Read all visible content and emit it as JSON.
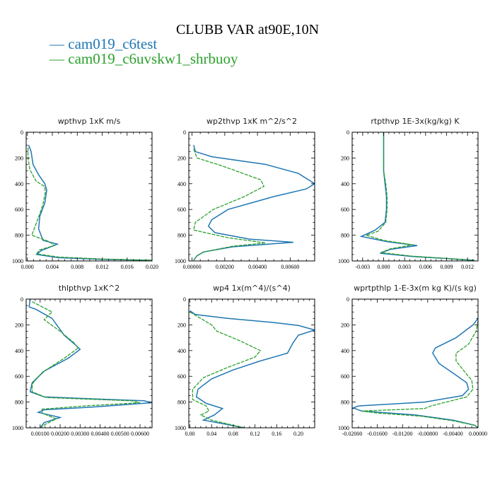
{
  "title": "CLUBB VAR at90E,10N",
  "colors": {
    "c6test": "#1f77b4",
    "shrbuoy": "#2ca02c"
  },
  "legend": [
    {
      "name": "cam019_c6test",
      "label": "— cam019_c6test",
      "color": "#1f77b4",
      "dash": ""
    },
    {
      "name": "cam019_c6uvskw1_shrbuoy",
      "label": "— cam019_c6uvskw1_shrbuoy",
      "color": "#2ca02c",
      "dash": "5,1.5"
    }
  ],
  "chart_data": [
    {
      "type": "line",
      "title": "wpthvp   1xK m/s",
      "ylim": [
        1000,
        0
      ],
      "yticks": [
        "0",
        "200",
        "400",
        "600",
        "800",
        "1000"
      ],
      "ytick_values": [
        0,
        200,
        400,
        600,
        800,
        1000
      ],
      "xlim": [
        -0.0002,
        0.02
      ],
      "xticks": [
        "0.000",
        "0.004",
        "0.008",
        "0.012",
        "0.016",
        "0.020"
      ],
      "xtick_values": [
        0,
        0.004,
        0.008,
        0.012,
        0.016,
        0.02
      ],
      "series": [
        {
          "name": "cam019_c6test",
          "points": [
            [
              0.0002,
              100
            ],
            [
              0.0006,
              150
            ],
            [
              0.0009,
              250
            ],
            [
              0.0018,
              330
            ],
            [
              0.0028,
              400
            ],
            [
              0.0031,
              450
            ],
            [
              0.0028,
              550
            ],
            [
              0.002,
              650
            ],
            [
              0.0018,
              750
            ],
            [
              0.0025,
              840
            ],
            [
              0.0048,
              870
            ],
            [
              0.0022,
              920
            ],
            [
              0.0015,
              950
            ],
            [
              0.005,
              975
            ],
            [
              0.012,
              988
            ],
            [
              0.02,
              995
            ]
          ]
        },
        {
          "name": "cam019_c6uvskw1_shrbuoy",
          "points": [
            [
              0.0001,
              120
            ],
            [
              0.0001,
              200
            ],
            [
              0.0004,
              290
            ],
            [
              0.0014,
              380
            ],
            [
              0.0027,
              420
            ],
            [
              0.0029,
              460
            ],
            [
              0.0025,
              560
            ],
            [
              0.0018,
              660
            ],
            [
              0.0007,
              800
            ],
            [
              0.0035,
              850
            ],
            [
              0.0043,
              880
            ],
            [
              0.0019,
              915
            ],
            [
              0.0015,
              945
            ],
            [
              0.005,
              970
            ],
            [
              0.012,
              985
            ],
            [
              0.02,
              995
            ]
          ]
        }
      ]
    },
    {
      "type": "line",
      "title": "wp2thvp   1xK m^2/s^2",
      "ylim": [
        1000,
        0
      ],
      "yticks": [
        "0",
        "200",
        "400",
        "600",
        "800",
        "1000"
      ],
      "ytick_values": [
        0,
        200,
        400,
        600,
        800,
        1000
      ],
      "xlim": [
        -0.0002,
        0.0075
      ],
      "xticks": [
        "0.00000",
        "0.00200",
        "0.00400",
        "0.00600"
      ],
      "xtick_values": [
        0,
        0.002,
        0.004,
        0.006
      ],
      "series": [
        {
          "name": "cam019_c6test",
          "points": [
            [
              0.0001,
              100
            ],
            [
              0.0002,
              150
            ],
            [
              0.0012,
              190
            ],
            [
              0.0045,
              250
            ],
            [
              0.0065,
              320
            ],
            [
              0.0075,
              400
            ],
            [
              0.007,
              440
            ],
            [
              0.005,
              500
            ],
            [
              0.0022,
              600
            ],
            [
              0.0012,
              680
            ],
            [
              0.001,
              730
            ],
            [
              0.0014,
              780
            ],
            [
              0.0035,
              830
            ],
            [
              0.0062,
              855
            ],
            [
              0.0025,
              890
            ],
            [
              0.0007,
              930
            ],
            [
              0.0003,
              960
            ],
            [
              0.0001,
              995
            ]
          ]
        },
        {
          "name": "cam019_c6uvskw1_shrbuoy",
          "points": [
            [
              0.0001,
              130
            ],
            [
              0.0003,
              200
            ],
            [
              0.0018,
              260
            ],
            [
              0.0042,
              370
            ],
            [
              0.0044,
              420
            ],
            [
              0.0032,
              500
            ],
            [
              0.0013,
              600
            ],
            [
              0.0002,
              700
            ],
            [
              0.0001,
              760
            ],
            [
              0.0022,
              820
            ],
            [
              0.0045,
              860
            ],
            [
              0.0025,
              885
            ],
            [
              0.0007,
              930
            ],
            [
              0.0003,
              960
            ],
            [
              0.0001,
              995
            ]
          ]
        }
      ]
    },
    {
      "type": "line",
      "title": "rtpthvp   1E-3x(kg/kg) K",
      "ylim": [
        1000,
        0
      ],
      "yticks": [
        "0",
        "200",
        "400",
        "600",
        "800",
        "1000"
      ],
      "ytick_values": [
        0,
        200,
        400,
        600,
        800,
        1000
      ],
      "xlim": [
        -0.0045,
        0.0135
      ],
      "xticks": [
        "-0.003",
        "0.000",
        "0.003",
        "0.006",
        "0.009",
        "0.012"
      ],
      "xtick_values": [
        -0.003,
        0,
        0.003,
        0.006,
        0.009,
        0.012
      ],
      "series": [
        {
          "name": "cam019_c6test",
          "points": [
            [
              0,
              0
            ],
            [
              0,
              100
            ],
            [
              0,
              200
            ],
            [
              0,
              300
            ],
            [
              0.0002,
              400
            ],
            [
              0.0004,
              500
            ],
            [
              0.0004,
              600
            ],
            [
              0.0002,
              700
            ],
            [
              -0.0012,
              760
            ],
            [
              -0.0032,
              810
            ],
            [
              0.0005,
              850
            ],
            [
              0.0048,
              880
            ],
            [
              0.001,
              910
            ],
            [
              -0.0005,
              940
            ],
            [
              0.004,
              965
            ],
            [
              0.013,
              995
            ]
          ]
        },
        {
          "name": "cam019_c6uvskw1_shrbuoy",
          "points": [
            [
              0,
              0
            ],
            [
              0,
              100
            ],
            [
              0,
              200
            ],
            [
              0,
              300
            ],
            [
              0.0003,
              400
            ],
            [
              0.0005,
              500
            ],
            [
              0.0005,
              600
            ],
            [
              0.0003,
              700
            ],
            [
              -0.0008,
              770
            ],
            [
              -0.0025,
              800
            ],
            [
              0,
              840
            ],
            [
              0.0042,
              875
            ],
            [
              0.001,
              905
            ],
            [
              -0.0004,
              935
            ],
            [
              0.004,
              962
            ],
            [
              0.013,
              995
            ]
          ]
        }
      ]
    },
    {
      "type": "line",
      "title": "thlpthvp   1xK^2",
      "ylim": [
        1000,
        0
      ],
      "yticks": [
        "0",
        "200",
        "400",
        "600",
        "800",
        "1000"
      ],
      "ytick_values": [
        0,
        200,
        400,
        600,
        800,
        1000
      ],
      "xlim": [
        0.0003,
        0.0066
      ],
      "xticks": [
        "0.00100",
        "0.00200",
        "0.00300",
        "0.00400",
        "0.00500",
        "0.00600"
      ],
      "xtick_values": [
        0.001,
        0.002,
        0.003,
        0.004,
        0.005,
        0.006
      ],
      "series": [
        {
          "name": "cam019_c6test",
          "points": [
            [
              0.0005,
              0
            ],
            [
              0.00045,
              60
            ],
            [
              0.0008,
              80
            ],
            [
              0.0016,
              150
            ],
            [
              0.0022,
              280
            ],
            [
              0.0028,
              360
            ],
            [
              0.003,
              390
            ],
            [
              0.0024,
              460
            ],
            [
              0.0012,
              560
            ],
            [
              0.0006,
              650
            ],
            [
              0.0005,
              720
            ],
            [
              0.0012,
              760
            ],
            [
              0.0062,
              790
            ],
            [
              0.0066,
              805
            ],
            [
              0.0035,
              840
            ],
            [
              0.0012,
              860
            ],
            [
              0.0009,
              880
            ],
            [
              0.002,
              920
            ],
            [
              0.0012,
              960
            ],
            [
              0.001,
              1000
            ]
          ]
        },
        {
          "name": "cam019_c6uvskw1_shrbuoy",
          "points": [
            [
              0.0006,
              20
            ],
            [
              0.0011,
              60
            ],
            [
              0.0016,
              100
            ],
            [
              0.0012,
              160
            ],
            [
              0.002,
              250
            ],
            [
              0.0027,
              340
            ],
            [
              0.0029,
              380
            ],
            [
              0.0022,
              460
            ],
            [
              0.0011,
              570
            ],
            [
              0.0006,
              660
            ],
            [
              0.0006,
              720
            ],
            [
              0.0013,
              765
            ],
            [
              0.0056,
              790
            ],
            [
              0.006,
              805
            ],
            [
              0.0032,
              830
            ],
            [
              0.0011,
              855
            ],
            [
              0.0011,
              885
            ],
            [
              0.0018,
              930
            ],
            [
              0.0013,
              970
            ],
            [
              0.001,
              1000
            ]
          ]
        }
      ]
    },
    {
      "type": "line",
      "title": "wp4   1x(m^4)/(s^4)",
      "ylim": [
        1000,
        0
      ],
      "yticks": [
        "0",
        "200",
        "400",
        "600",
        "800",
        "1000"
      ],
      "ytick_values": [
        0,
        200,
        400,
        600,
        800,
        1000
      ],
      "xlim": [
        -0.002,
        0.23
      ],
      "xticks": [
        "0.00",
        "0.04",
        "0.08",
        "0.12",
        "0.16",
        "0.20"
      ],
      "xtick_values": [
        0,
        0.04,
        0.08,
        0.12,
        0.16,
        0.2
      ],
      "series": [
        {
          "name": "cam019_c6test",
          "points": [
            [
              0,
              90
            ],
            [
              0.01,
              120
            ],
            [
              0.07,
              150
            ],
            [
              0.15,
              180
            ],
            [
              0.2,
              205
            ],
            [
              0.23,
              240
            ],
            [
              0.2,
              280
            ],
            [
              0.19,
              340
            ],
            [
              0.18,
              420
            ],
            [
              0.13,
              480
            ],
            [
              0.08,
              550
            ],
            [
              0.04,
              620
            ],
            [
              0.015,
              700
            ],
            [
              0.012,
              760
            ],
            [
              0.03,
              810
            ],
            [
              0.06,
              850
            ],
            [
              0.045,
              900
            ],
            [
              0.025,
              940
            ],
            [
              0.07,
              975
            ],
            [
              0.1,
              1000
            ]
          ]
        },
        {
          "name": "cam019_c6uvskw1_shrbuoy",
          "points": [
            [
              0,
              100
            ],
            [
              0.02,
              150
            ],
            [
              0.04,
              200
            ],
            [
              0.05,
              250
            ],
            [
              0.09,
              320
            ],
            [
              0.13,
              400
            ],
            [
              0.12,
              450
            ],
            [
              0.07,
              530
            ],
            [
              0.025,
              610
            ],
            [
              0.005,
              700
            ],
            [
              0.005,
              780
            ],
            [
              0.03,
              830
            ],
            [
              0.035,
              870
            ],
            [
              0.02,
              900
            ],
            [
              0.04,
              940
            ],
            [
              0.08,
              980
            ],
            [
              0.1,
              1000
            ]
          ]
        }
      ]
    },
    {
      "type": "line",
      "title": "wprtpthlp   1-E-3x(m kg K)/(s kg)",
      "ylim": [
        1000,
        0
      ],
      "yticks": [
        "0",
        "200",
        "400",
        "600",
        "800",
        "1000"
      ],
      "ytick_values": [
        0,
        200,
        400,
        600,
        800,
        1000
      ],
      "xlim": [
        -0.02,
        0
      ],
      "xticks": [
        "-0.02000",
        "-0.01600",
        "-0.01200",
        "-0.00800",
        "-0.00400",
        "0.00000"
      ],
      "xtick_values": [
        -0.02,
        -0.016,
        -0.012,
        -0.008,
        -0.004,
        0
      ],
      "series": [
        {
          "name": "cam019_c6test",
          "points": [
            [
              0,
              150
            ],
            [
              -0.0008,
              200
            ],
            [
              -0.0035,
              300
            ],
            [
              -0.0068,
              380
            ],
            [
              -0.0072,
              420
            ],
            [
              -0.0062,
              500
            ],
            [
              -0.0038,
              580
            ],
            [
              -0.0018,
              650
            ],
            [
              -0.0015,
              700
            ],
            [
              -0.0025,
              750
            ],
            [
              -0.0085,
              800
            ],
            [
              -0.019,
              830
            ],
            [
              -0.0198,
              845
            ],
            [
              -0.0185,
              870
            ],
            [
              -0.01,
              900
            ],
            [
              -0.004,
              940
            ],
            [
              -0.0005,
              980
            ],
            [
              0,
              1000
            ]
          ]
        },
        {
          "name": "cam019_c6uvskw1_shrbuoy",
          "points": [
            [
              0,
              170
            ],
            [
              -0.0003,
              250
            ],
            [
              -0.0015,
              350
            ],
            [
              -0.0035,
              420
            ],
            [
              -0.0035,
              480
            ],
            [
              -0.0022,
              560
            ],
            [
              -0.001,
              630
            ],
            [
              -0.0008,
              700
            ],
            [
              -0.0018,
              760
            ],
            [
              -0.0075,
              830
            ],
            [
              -0.0085,
              850
            ],
            [
              -0.0185,
              870
            ],
            [
              -0.016,
              885
            ],
            [
              -0.009,
              910
            ],
            [
              -0.004,
              945
            ],
            [
              -0.0005,
              980
            ],
            [
              0,
              1000
            ]
          ]
        }
      ]
    }
  ]
}
